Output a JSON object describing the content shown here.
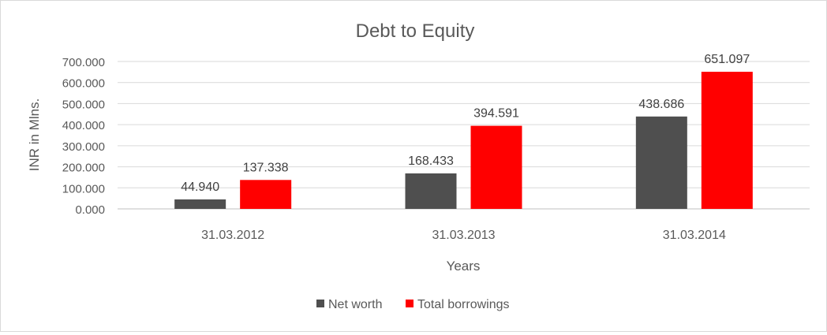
{
  "chart_data": {
    "type": "bar",
    "title": "Debt to Equity",
    "xlabel": "Years",
    "ylabel": "INR in Mlns.",
    "categories": [
      "31.03.2012",
      "31.03.2013",
      "31.03.2014"
    ],
    "series": [
      {
        "name": "Net worth",
        "values": [
          44.94,
          168.433,
          438.686
        ],
        "labels": [
          "44.940",
          "168.433",
          "438.686"
        ],
        "color": "#4f4f4f"
      },
      {
        "name": "Total borrowings",
        "values": [
          137.338,
          394.591,
          651.097
        ],
        "labels": [
          "137.338",
          "394.591",
          "651.097"
        ],
        "color": "#ff0000"
      }
    ],
    "yticks": [
      "0.000",
      "100.000",
      "200.000",
      "300.000",
      "400.000",
      "500.000",
      "600.000",
      "700.000"
    ],
    "ylim": [
      0,
      700
    ],
    "grid": true,
    "legend_position": "bottom"
  }
}
